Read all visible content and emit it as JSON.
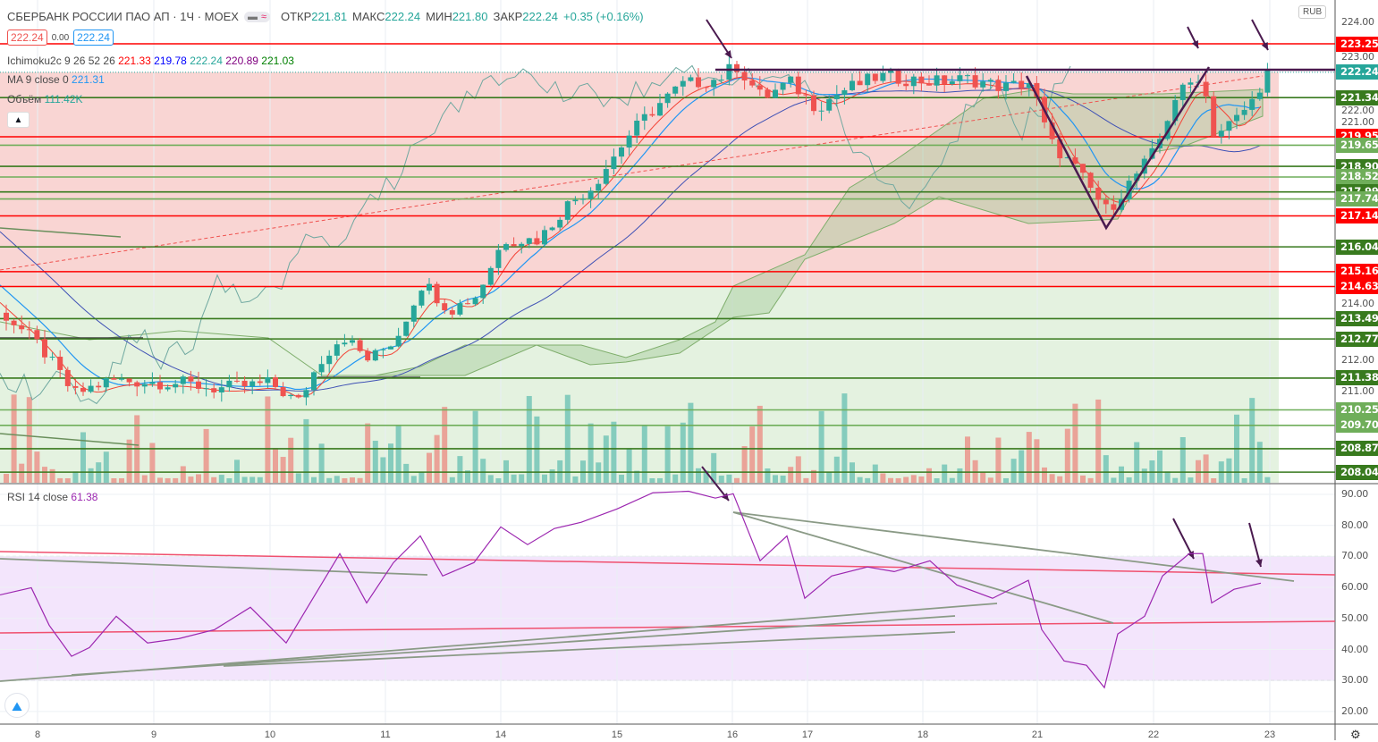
{
  "header": {
    "symbol": "СБЕРБАНК РОССИИ ПАО АП · 1Ч · MOEX",
    "open_label": "ОТКР",
    "open": "221.81",
    "high_label": "МАКС",
    "high": "222.24",
    "low_label": "МИН",
    "low": "221.80",
    "close_label": "ЗАКР",
    "close": "222.24",
    "change": "+0.35 (+0.16%)",
    "bid": "222.24",
    "spread": "0.00",
    "ask": "222.24"
  },
  "indicators": {
    "ichimoku": {
      "label": "Ichimoku2c 9 26 52 26",
      "v1": "221.33",
      "v2": "219.78",
      "v3": "222.24",
      "v4": "220.89",
      "v5": "221.03"
    },
    "ma": {
      "label": "MA 9 close 0",
      "value": "221.31"
    },
    "volume": {
      "label": "Объём",
      "value": "111.42K"
    },
    "rsi": {
      "label": "RSI 14 close",
      "value": "61.38"
    }
  },
  "currency": "RUB",
  "colors": {
    "up": "#26a69a",
    "down": "#ef5350",
    "red_level": "#ff0000",
    "dark_green_level": "#387a1e",
    "light_green_level": "#6fae5a",
    "rsi": "#9c27b0",
    "annotation": "#4a1a4f"
  },
  "chart_data": [
    {
      "type": "candlestick",
      "title": "СБЕРБАНК РОССИИ ПАО АП · 1Ч · MOEX",
      "ylim": [
        207.6,
        224.4
      ],
      "price_ticks": [
        "224.00",
        "223.00",
        "222.00",
        "221.00",
        "214.00",
        "212.00",
        "211.00"
      ],
      "x_ticks": [
        "8",
        "9",
        "10",
        "11",
        "14",
        "15",
        "16",
        "17",
        "18",
        "21",
        "22",
        "23"
      ],
      "levels": [
        {
          "v": "223.25",
          "kind": "red"
        },
        {
          "v": "222.24",
          "kind": "last"
        },
        {
          "v": "221.34",
          "kind": "dark"
        },
        {
          "v": "219.95",
          "kind": "red"
        },
        {
          "v": "219.65",
          "kind": "light"
        },
        {
          "v": "218.90",
          "kind": "dark"
        },
        {
          "v": "218.52",
          "kind": "light"
        },
        {
          "v": "217.99",
          "kind": "dark"
        },
        {
          "v": "217.74",
          "kind": "light"
        },
        {
          "v": "217.14",
          "kind": "red"
        },
        {
          "v": "216.04",
          "kind": "dark"
        },
        {
          "v": "215.16",
          "kind": "red"
        },
        {
          "v": "214.63",
          "kind": "red"
        },
        {
          "v": "213.49",
          "kind": "dark"
        },
        {
          "v": "212.77",
          "kind": "dark"
        },
        {
          "v": "211.38",
          "kind": "dark"
        },
        {
          "v": "210.25",
          "kind": "light"
        },
        {
          "v": "209.70",
          "kind": "light"
        },
        {
          "v": "208.87",
          "kind": "dark"
        },
        {
          "v": "208.04",
          "kind": "dark"
        }
      ],
      "close_path": [
        [
          0,
          213.7
        ],
        [
          42,
          212.5
        ],
        [
          80,
          210.8
        ],
        [
          120,
          211.3
        ],
        [
          200,
          211.2
        ],
        [
          240,
          211.0
        ],
        [
          300,
          211.2
        ],
        [
          330,
          210.5
        ],
        [
          355,
          212.0
        ],
        [
          380,
          212.9
        ],
        [
          410,
          212.0
        ],
        [
          440,
          212.8
        ],
        [
          470,
          214.8
        ],
        [
          500,
          213.8
        ],
        [
          530,
          214.3
        ],
        [
          560,
          216.3
        ],
        [
          600,
          216.3
        ],
        [
          630,
          217.5
        ],
        [
          660,
          218.2
        ],
        [
          700,
          220.0
        ],
        [
          730,
          221.0
        ],
        [
          760,
          221.8
        ],
        [
          800,
          222.0
        ],
        [
          820,
          222.5
        ],
        [
          850,
          221.3
        ],
        [
          880,
          221.9
        ],
        [
          910,
          221.0
        ],
        [
          940,
          221.6
        ],
        [
          980,
          222.1
        ],
        [
          1040,
          221.9
        ],
        [
          1080,
          222.0
        ],
        [
          1120,
          221.7
        ],
        [
          1150,
          221.9
        ],
        [
          1170,
          219.8
        ],
        [
          1200,
          218.8
        ],
        [
          1235,
          217.3
        ],
        [
          1260,
          218.3
        ],
        [
          1290,
          219.5
        ],
        [
          1310,
          221.3
        ],
        [
          1340,
          222.2
        ],
        [
          1355,
          220.0
        ],
        [
          1380,
          220.6
        ],
        [
          1400,
          221.3
        ],
        [
          1412,
          222.24
        ]
      ]
    },
    {
      "type": "line",
      "title": "RSI 14 close",
      "ylim": [
        15,
        95
      ],
      "y_ticks": [
        "90.00",
        "80.00",
        "70.00",
        "60.00",
        "50.00",
        "40.00",
        "30.00",
        "20.00"
      ],
      "band": [
        30,
        70
      ],
      "points": [
        [
          0,
          57.6
        ],
        [
          35,
          59.9
        ],
        [
          55,
          47.8
        ],
        [
          80,
          37.8
        ],
        [
          100,
          40.6
        ],
        [
          130,
          50.7
        ],
        [
          165,
          42.1
        ],
        [
          200,
          43.5
        ],
        [
          240,
          46.4
        ],
        [
          280,
          53.6
        ],
        [
          320,
          42.1
        ],
        [
          350,
          56.5
        ],
        [
          380,
          70.9
        ],
        [
          410,
          55
        ],
        [
          440,
          68
        ],
        [
          470,
          76.6
        ],
        [
          495,
          63.7
        ],
        [
          530,
          68
        ],
        [
          560,
          79.5
        ],
        [
          590,
          73.8
        ],
        [
          620,
          79
        ],
        [
          650,
          81
        ],
        [
          690,
          85.3
        ],
        [
          730,
          90.5
        ],
        [
          770,
          91
        ],
        [
          800,
          88.8
        ],
        [
          820,
          90.2
        ],
        [
          850,
          68.6
        ],
        [
          880,
          76.6
        ],
        [
          900,
          56.5
        ],
        [
          930,
          63.7
        ],
        [
          970,
          66.6
        ],
        [
          1000,
          65.1
        ],
        [
          1040,
          68.6
        ],
        [
          1070,
          60.8
        ],
        [
          1110,
          56.5
        ],
        [
          1150,
          62.3
        ],
        [
          1165,
          46.4
        ],
        [
          1190,
          36.3
        ],
        [
          1215,
          34.9
        ],
        [
          1235,
          27.7
        ],
        [
          1250,
          45
        ],
        [
          1280,
          50.7
        ],
        [
          1300,
          63.7
        ],
        [
          1330,
          70.9
        ],
        [
          1345,
          70.9
        ],
        [
          1355,
          55
        ],
        [
          1380,
          59.4
        ],
        [
          1410,
          61.38
        ]
      ]
    }
  ]
}
